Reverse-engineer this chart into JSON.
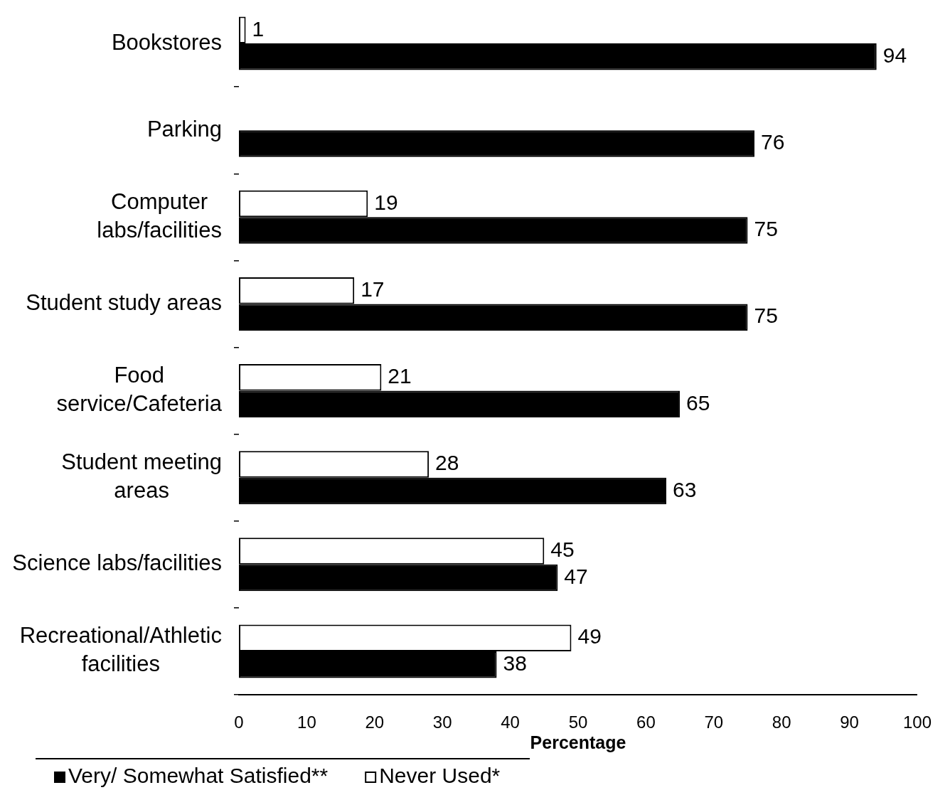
{
  "chart_data": {
    "type": "bar",
    "orientation": "horizontal",
    "xlabel": "Percentage",
    "categories": [
      "Bookstores",
      "Parking",
      "Computer labs/facilities",
      "Student study areas",
      "Food service/Cafeteria",
      "Student meeting areas",
      "Science labs/facilities",
      "Recreational/Athletic facilities"
    ],
    "series": [
      {
        "name": "Never Used*",
        "color": "#ffffff",
        "values": [
          1,
          null,
          19,
          17,
          21,
          28,
          45,
          49
        ]
      },
      {
        "name": "Very/ Somewhat Satisfied**",
        "color": "#000000",
        "values": [
          94,
          76,
          75,
          75,
          65,
          63,
          47,
          38
        ]
      }
    ],
    "xlim": [
      0,
      100
    ],
    "xticks": [
      0,
      10,
      20,
      30,
      40,
      50,
      60,
      70,
      80,
      90,
      100
    ],
    "grid": false,
    "legend": "bottom",
    "data_labels": true
  }
}
